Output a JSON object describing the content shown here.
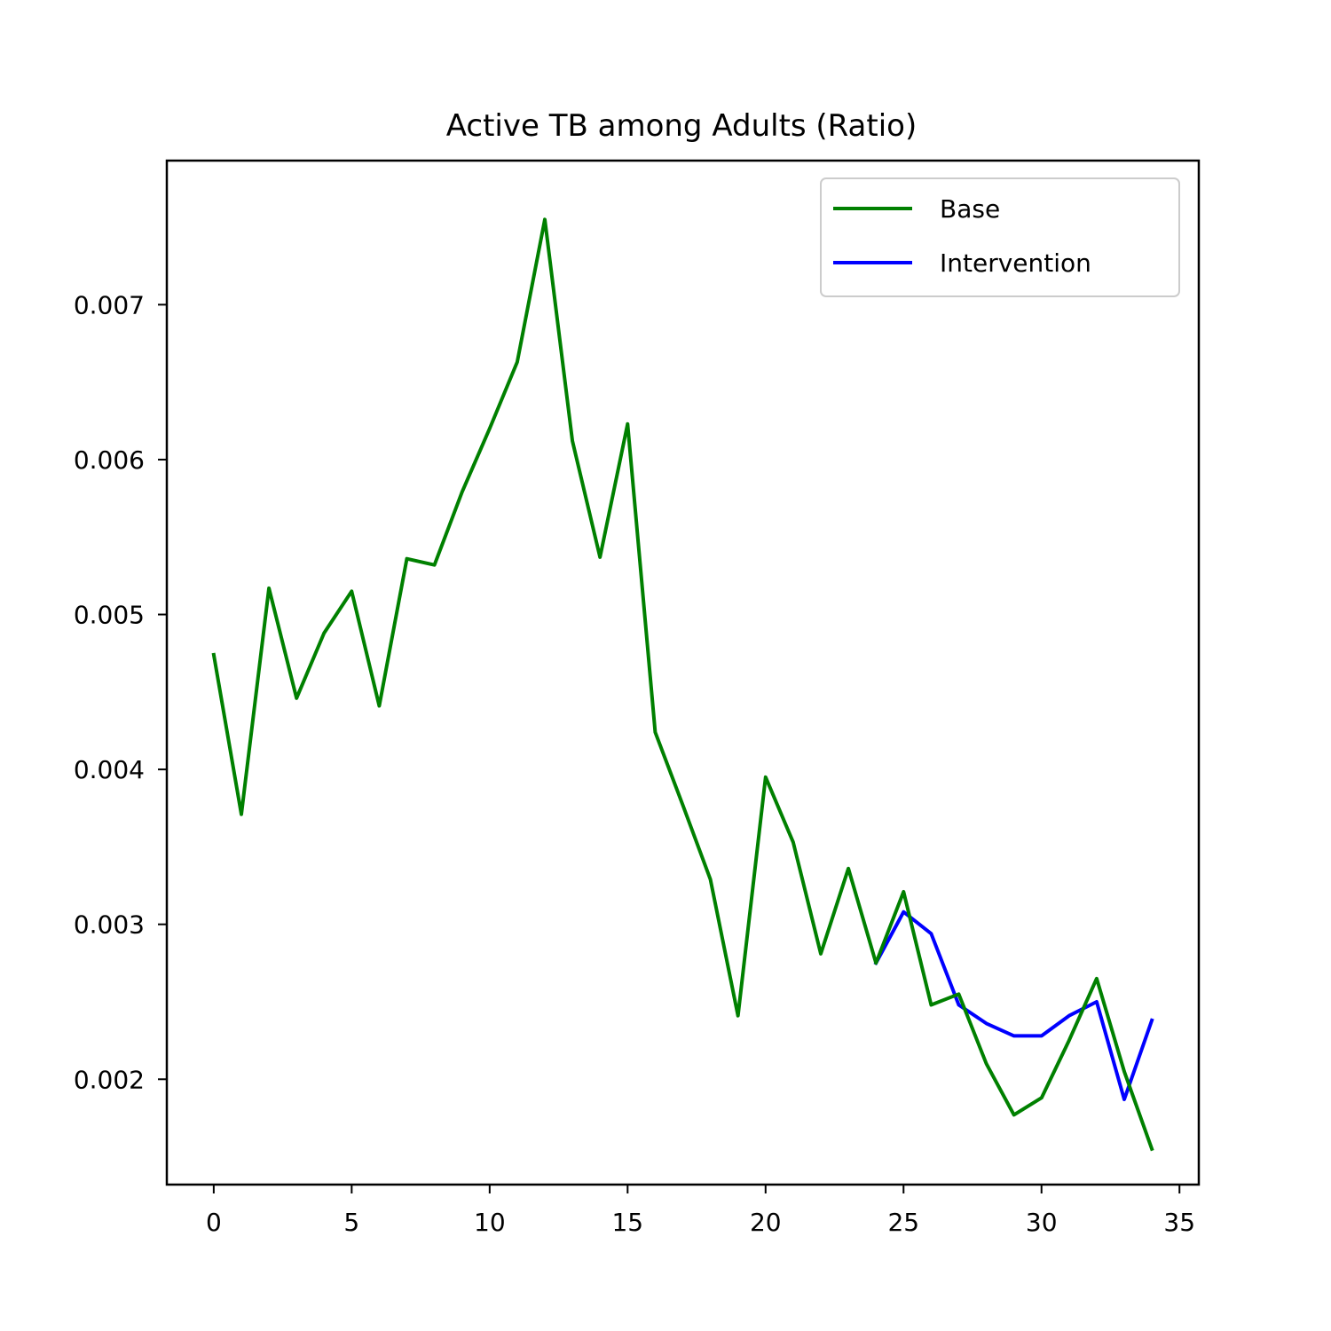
{
  "chart_data": {
    "type": "line",
    "title": "Active TB among Adults (Ratio)",
    "xlabel": "",
    "ylabel": "",
    "xlim": [
      -1.7,
      35.7
    ],
    "ylim": [
      0.00132,
      0.00793
    ],
    "xticks": [
      0,
      5,
      10,
      15,
      20,
      25,
      30,
      35
    ],
    "xtick_labels": [
      "0",
      "5",
      "10",
      "15",
      "20",
      "25",
      "30",
      "35"
    ],
    "yticks": [
      0.002,
      0.003,
      0.004,
      0.005,
      0.006,
      0.007
    ],
    "ytick_labels": [
      "0.002",
      "0.003",
      "0.004",
      "0.005",
      "0.006",
      "0.007"
    ],
    "grid": false,
    "legend_position": "top-right",
    "series": [
      {
        "name": "Base",
        "color": "#008000",
        "x": [
          0,
          1,
          2,
          3,
          4,
          5,
          6,
          7,
          8,
          9,
          10,
          11,
          12,
          13,
          14,
          15,
          16,
          17,
          18,
          19,
          20,
          21,
          22,
          23,
          24,
          25,
          26,
          27,
          28,
          29,
          30,
          31,
          32,
          33,
          34
        ],
        "values": [
          0.00474,
          0.00371,
          0.00517,
          0.00446,
          0.00488,
          0.00515,
          0.00441,
          0.00536,
          0.00532,
          0.00579,
          0.0062,
          0.00663,
          0.00755,
          0.00612,
          0.00537,
          0.00623,
          0.00424,
          0.00377,
          0.00329,
          0.00241,
          0.00395,
          0.00353,
          0.00281,
          0.00336,
          0.00275,
          0.00321,
          0.00248,
          0.00255,
          0.0021,
          0.00177,
          0.00188,
          0.00225,
          0.00265,
          0.00205,
          0.00155
        ]
      },
      {
        "name": "Intervention",
        "color": "#0000ff",
        "x": [
          24,
          25,
          26,
          27,
          28,
          29,
          30,
          31,
          32,
          33,
          34
        ],
        "values": [
          0.00275,
          0.00308,
          0.00294,
          0.00248,
          0.00236,
          0.00228,
          0.00228,
          0.00241,
          0.0025,
          0.00187,
          0.00238
        ]
      }
    ]
  }
}
